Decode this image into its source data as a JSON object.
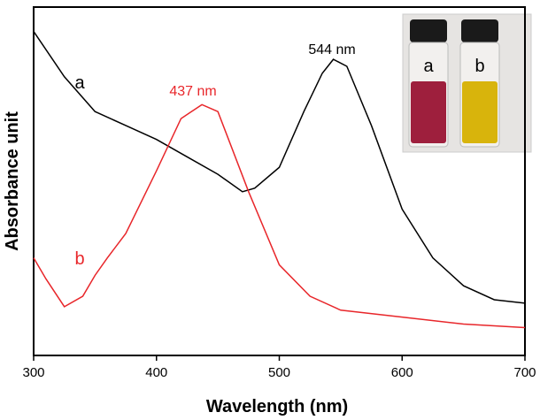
{
  "chart_data": {
    "type": "line",
    "xlabel": "Wavelength (nm)",
    "ylabel": "Absorbance unit",
    "xlim": [
      300,
      700
    ],
    "ylim": [
      0,
      1
    ],
    "xticks": [
      300,
      400,
      500,
      600,
      700
    ],
    "series": [
      {
        "name": "a",
        "color": "#000000",
        "x": [
          300,
          325,
          350,
          375,
          400,
          425,
          450,
          470,
          480,
          500,
          520,
          535,
          544,
          555,
          575,
          600,
          625,
          650,
          675,
          700
        ],
        "values": [
          0.93,
          0.8,
          0.7,
          0.66,
          0.62,
          0.57,
          0.52,
          0.47,
          0.48,
          0.54,
          0.7,
          0.81,
          0.85,
          0.83,
          0.66,
          0.42,
          0.28,
          0.2,
          0.16,
          0.15
        ]
      },
      {
        "name": "b",
        "color": "#e8262a",
        "x": [
          300,
          310,
          325,
          340,
          350,
          360,
          375,
          400,
          420,
          437,
          450,
          475,
          500,
          525,
          550,
          600,
          650,
          700
        ],
        "values": [
          0.28,
          0.22,
          0.14,
          0.17,
          0.23,
          0.28,
          0.35,
          0.53,
          0.68,
          0.72,
          0.7,
          0.47,
          0.26,
          0.17,
          0.13,
          0.11,
          0.09,
          0.08
        ]
      }
    ],
    "annotations": [
      "544 nm",
      "437 nm"
    ]
  }
}
